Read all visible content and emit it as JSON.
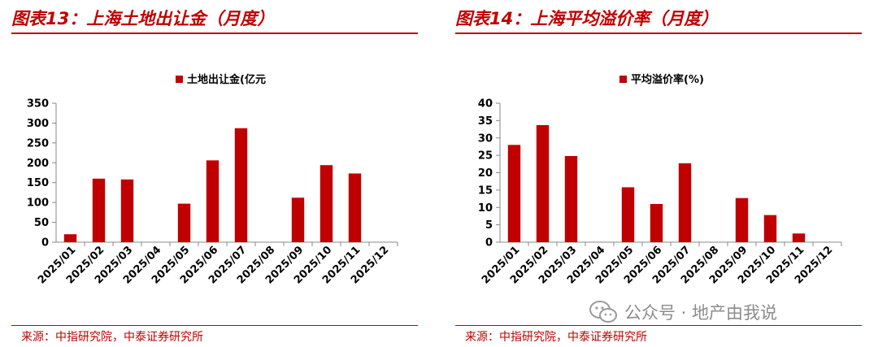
{
  "left": {
    "figure_title": "图表13：上海土地出让金（月度）",
    "source": "来源：中指研究院，中泰证券研究所"
  },
  "right": {
    "figure_title": "图表14：上海平均溢价率（月度）",
    "source": "来源：中指研究院，中泰证券研究所"
  },
  "watermark": {
    "text": "公众号 · 地产由我说",
    "icon": "wechat-icon"
  },
  "colors": {
    "bar": "#c00000",
    "title": "#c00000",
    "axis": "#888888"
  },
  "chart_data": [
    {
      "type": "bar",
      "categories": [
        "2025/01",
        "2025/02",
        "2025/03",
        "2025/04",
        "2025/05",
        "2025/06",
        "2025/07",
        "2025/08",
        "2025/09",
        "2025/10",
        "2025/11",
        "2025/12"
      ],
      "series": [
        {
          "name": "土地出让金(亿元",
          "values": [
            20,
            160,
            158,
            0,
            97,
            206,
            287,
            0,
            112,
            194,
            173,
            0
          ]
        }
      ],
      "yticks": [
        0,
        50,
        100,
        150,
        200,
        250,
        300,
        350
      ],
      "ylim": [
        0,
        350
      ],
      "legend": "top-center",
      "grid": false
    },
    {
      "type": "bar",
      "categories": [
        "2025/01",
        "2025/02",
        "2025/03",
        "2025/04",
        "2025/05",
        "2025/06",
        "2025/07",
        "2025/08",
        "2025/09",
        "2025/10",
        "2025/11",
        "2025/12"
      ],
      "series": [
        {
          "name": "平均溢价率(%)",
          "values": [
            28,
            33.7,
            24.8,
            0,
            15.8,
            11,
            22.7,
            0,
            12.7,
            7.8,
            2.5,
            0
          ]
        }
      ],
      "yticks": [
        0,
        5,
        10,
        15,
        20,
        25,
        30,
        35,
        40
      ],
      "ylim": [
        0,
        40
      ],
      "legend": "top-center",
      "grid": false
    }
  ]
}
